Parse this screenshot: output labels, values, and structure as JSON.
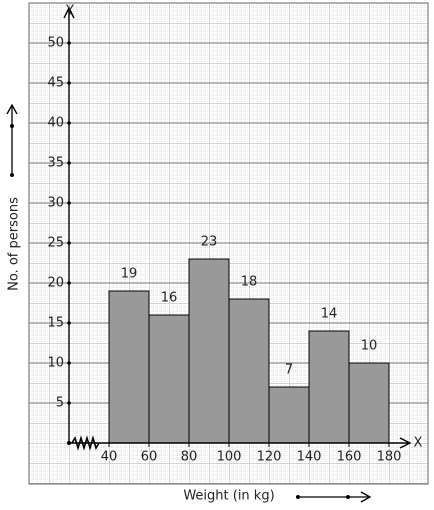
{
  "chart_data": {
    "type": "histogram",
    "x_label": "Weight (in kg)",
    "y_label": "No. of persons",
    "x_axis_name": "X",
    "y_axis_name": "Y",
    "bins": [
      40,
      60,
      80,
      100,
      120,
      140,
      160,
      180
    ],
    "values": [
      19,
      16,
      23,
      18,
      7,
      14,
      10
    ],
    "color": "#999999",
    "xlim": [
      20,
      190
    ],
    "ylim": [
      0,
      54
    ],
    "xticks": [
      40,
      60,
      80,
      100,
      120,
      140,
      160,
      180
    ],
    "yticks": [
      5,
      10,
      15,
      20,
      25,
      30,
      35,
      40,
      45,
      50
    ],
    "grid": true
  }
}
